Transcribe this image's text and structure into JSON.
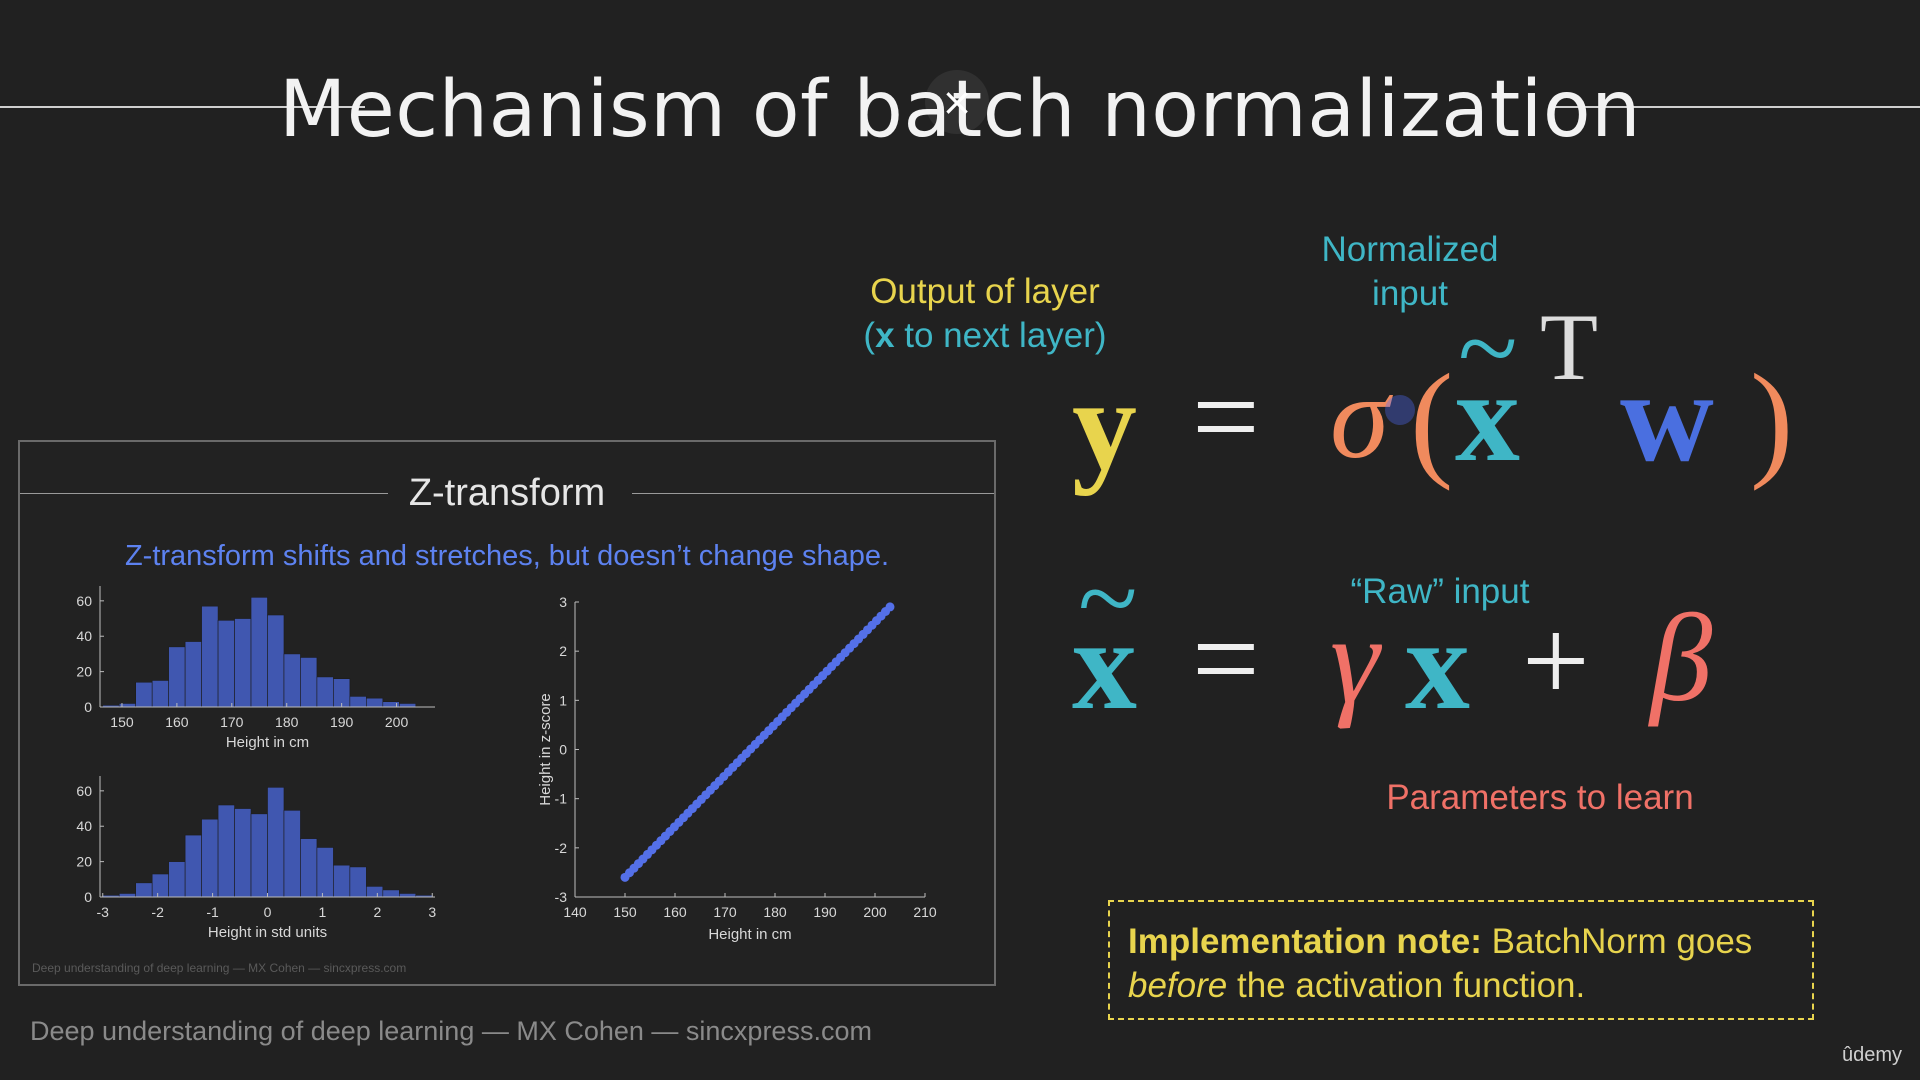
{
  "title": "Mechanism of batch normalization",
  "close_icon_glyph": "×",
  "z_panel": {
    "title": "Z-transform",
    "subtitle": "Z-transform shifts and stretches, but doesn’t change shape.",
    "credit": "Deep understanding of deep learning — MX Cohen — sincxpress.com"
  },
  "labels": {
    "output_line1": "Output of layer",
    "output_x": "x",
    "output_line2_rest": " to next layer)",
    "output_paren": "(",
    "normalized_line1": "Normalized",
    "normalized_line2": "input",
    "raw_input": "“Raw” input",
    "params": "Parameters to learn"
  },
  "equation1": {
    "y": "y",
    "eq": "=",
    "sigma": "σ",
    "lparen": "(",
    "x": "x",
    "tilde": "~",
    "T": "T",
    "w": "w",
    "rparen": ")"
  },
  "equation2": {
    "x": "x",
    "tilde": "~",
    "eq": "=",
    "gamma": "γ",
    "x2": "x",
    "plus": "+",
    "beta": "β"
  },
  "impl_note": {
    "bold": "Implementation note:",
    "rest1": " BatchNorm goes",
    "italic": "before",
    "rest2": " the activation function."
  },
  "footer": "Deep understanding of deep learning — MX Cohen — sincxpress.com",
  "brand": "ûdemy",
  "colors": {
    "yellow": "#e8d44d",
    "cyan": "#3fb6c6",
    "blue": "#4a6fe0",
    "orange": "#f08a5d",
    "salmon": "#f07167",
    "chart_blue": "#4057b0"
  },
  "chart_data": [
    {
      "type": "bar",
      "categories": [
        "148",
        "151",
        "154",
        "157",
        "160",
        "163",
        "166",
        "169",
        "172",
        "175",
        "178",
        "181",
        "184",
        "187",
        "190",
        "193",
        "196",
        "199",
        "202",
        "205"
      ],
      "values": [
        1,
        2,
        14,
        15,
        34,
        37,
        57,
        49,
        50,
        62,
        52,
        30,
        28,
        17,
        16,
        6,
        5,
        3,
        2,
        0
      ],
      "xlabel": "Height in cm",
      "xticks": [
        150,
        160,
        170,
        180,
        190,
        200
      ],
      "xlim": [
        146,
        207
      ],
      "ylim": [
        0,
        65
      ],
      "yticks": [
        0,
        20,
        40,
        60
      ]
    },
    {
      "type": "bar",
      "categories": [
        "-2.85",
        "-2.55",
        "-2.25",
        "-1.95",
        "-1.65",
        "-1.35",
        "-1.05",
        "-0.75",
        "-0.45",
        "-0.15",
        "0.15",
        "0.45",
        "0.75",
        "1.05",
        "1.35",
        "1.65",
        "1.95",
        "2.25",
        "2.55",
        "2.85"
      ],
      "values": [
        1,
        2,
        8,
        13,
        20,
        35,
        44,
        52,
        50,
        47,
        62,
        49,
        33,
        28,
        18,
        17,
        6,
        4,
        2,
        1
      ],
      "xlabel": "Height in std units",
      "xticks": [
        -3,
        -2,
        -1,
        0,
        1,
        2,
        3
      ],
      "xlim": [
        -3.05,
        3.05
      ],
      "ylim": [
        0,
        65
      ],
      "yticks": [
        0,
        20,
        40,
        60
      ]
    },
    {
      "type": "scatter",
      "x_range": [
        150,
        203
      ],
      "y_range": [
        -2.6,
        2.9
      ],
      "n_points": 60,
      "xlabel": "Height in cm",
      "ylabel": "Height in z-score",
      "xlim": [
        140,
        210
      ],
      "ylim": [
        -3,
        3
      ],
      "xticks": [
        140,
        150,
        160,
        170,
        180,
        190,
        200,
        210
      ],
      "yticks": [
        -3,
        -2,
        -1,
        0,
        1,
        2,
        3
      ]
    }
  ]
}
